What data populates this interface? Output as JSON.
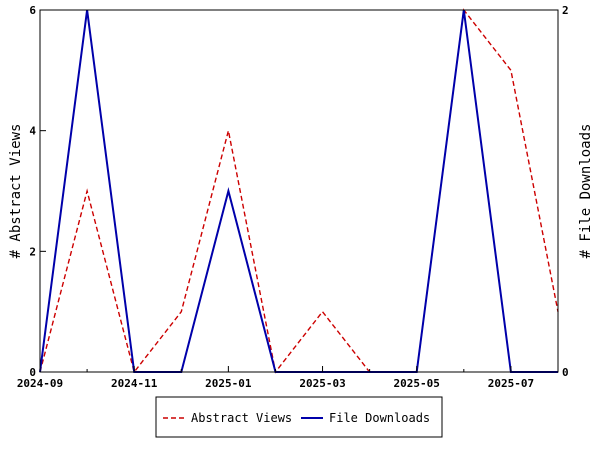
{
  "chart_data": {
    "type": "line",
    "title": "",
    "xlabel": "",
    "ylabel_left": "# Abstract Views",
    "ylabel_right": "# File Downloads",
    "x": [
      "2024-09",
      "2024-10",
      "2024-11",
      "2024-12",
      "2025-01",
      "2025-02",
      "2025-03",
      "2025-04",
      "2025-05",
      "2025-06",
      "2025-07",
      "2025-08"
    ],
    "x_tick_labels": [
      "2024-09",
      "2024-11",
      "2025-01",
      "2025-03",
      "2025-05",
      "2025-07"
    ],
    "ylim_left": [
      0,
      6
    ],
    "ylim_right": [
      0,
      2
    ],
    "y_ticks_left": [
      0,
      2,
      4,
      6
    ],
    "y_ticks_right": [
      0,
      2
    ],
    "grid": false,
    "legend_placement": "bottom",
    "series": [
      {
        "name": "Abstract Views",
        "axis": "left",
        "style": "dashed",
        "color": "#cc0000",
        "values": [
          0,
          3,
          0,
          1,
          4,
          0,
          1,
          0,
          0,
          6,
          5,
          1
        ]
      },
      {
        "name": "File Downloads",
        "axis": "right",
        "style": "solid",
        "color": "#0000aa",
        "values": [
          0,
          2,
          0,
          0,
          1,
          0,
          0,
          0,
          0,
          2,
          0,
          0
        ]
      }
    ]
  }
}
